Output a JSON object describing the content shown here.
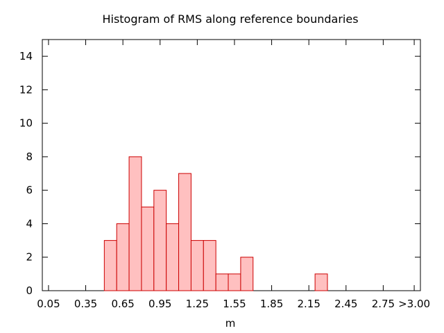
{
  "chart_data": {
    "type": "bar",
    "title": "Histogram of RMS along reference boundaries",
    "xlabel": "m",
    "ylabel": "",
    "bin_width": 0.1,
    "xlim": [
      0.0,
      3.05
    ],
    "ylim": [
      0,
      15
    ],
    "x_ticks": [
      {
        "value": 0.05,
        "label": "0.05"
      },
      {
        "value": 0.35,
        "label": "0.35"
      },
      {
        "value": 0.65,
        "label": "0.65"
      },
      {
        "value": 0.95,
        "label": "0.95"
      },
      {
        "value": 1.25,
        "label": "1.25"
      },
      {
        "value": 1.55,
        "label": "1.55"
      },
      {
        "value": 1.85,
        "label": "1.85"
      },
      {
        "value": 2.15,
        "label": "2.15"
      },
      {
        "value": 2.45,
        "label": "2.45"
      },
      {
        "value": 2.75,
        "label": "2.75"
      },
      {
        "value": 3.0,
        "label": ">3.00"
      }
    ],
    "y_ticks": [
      0,
      2,
      4,
      6,
      8,
      10,
      12,
      14
    ],
    "bins": [
      {
        "x": 0.55,
        "count": 3
      },
      {
        "x": 0.65,
        "count": 4
      },
      {
        "x": 0.75,
        "count": 8
      },
      {
        "x": 0.85,
        "count": 5
      },
      {
        "x": 0.95,
        "count": 6
      },
      {
        "x": 1.05,
        "count": 4
      },
      {
        "x": 1.15,
        "count": 7
      },
      {
        "x": 1.25,
        "count": 3
      },
      {
        "x": 1.35,
        "count": 3
      },
      {
        "x": 1.45,
        "count": 1
      },
      {
        "x": 1.55,
        "count": 1
      },
      {
        "x": 1.65,
        "count": 2
      },
      {
        "x": 2.25,
        "count": 1
      }
    ],
    "bar_fill": "#ffc0c0",
    "bar_stroke": "#cc0000",
    "grid": false,
    "legend": "none"
  }
}
